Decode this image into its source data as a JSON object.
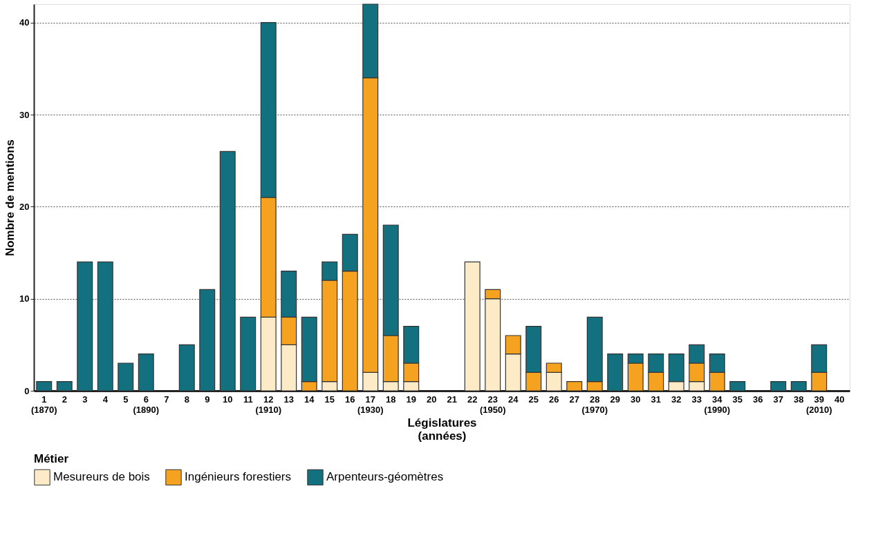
{
  "chart_data": {
    "type": "bar",
    "stacked": true,
    "xlabel": "Législatures\n(années)",
    "ylabel": "Nombre de mentions",
    "legend_title": "Métier",
    "legend": "bottom",
    "grid": "y",
    "ylim": [
      0,
      42
    ],
    "yticks": [
      0,
      10,
      20,
      30,
      40
    ],
    "categories": [
      "1\n(1870)",
      "2",
      "3",
      "4",
      "5",
      "6\n(1890)",
      "7",
      "8",
      "9",
      "10",
      "11",
      "12\n(1910)",
      "13",
      "14",
      "15",
      "16",
      "17\n(1930)",
      "18",
      "19",
      "20",
      "21",
      "22",
      "23\n(1950)",
      "24",
      "25",
      "26",
      "27",
      "28\n(1970)",
      "29",
      "30",
      "31",
      "32",
      "33",
      "34\n(1990)",
      "35",
      "36",
      "37",
      "38",
      "39\n(2010)",
      "40"
    ],
    "series": [
      {
        "name": "Mesureurs de bois",
        "color": "#fdebc8",
        "values": [
          null,
          null,
          null,
          null,
          null,
          null,
          null,
          null,
          null,
          null,
          null,
          8,
          5,
          null,
          1,
          null,
          2,
          1,
          1,
          null,
          null,
          14,
          10,
          4,
          null,
          2,
          null,
          null,
          null,
          null,
          null,
          1,
          1,
          null,
          null,
          null,
          null,
          null,
          null,
          null
        ]
      },
      {
        "name": "Ingénieurs forestiers",
        "color": "#f4a21f",
        "values": [
          null,
          null,
          null,
          null,
          null,
          null,
          null,
          null,
          null,
          null,
          null,
          13,
          3,
          1,
          11,
          13,
          32,
          5,
          2,
          null,
          null,
          null,
          1,
          2,
          2,
          1,
          1,
          1,
          null,
          3,
          2,
          null,
          2,
          2,
          null,
          null,
          null,
          null,
          2,
          null
        ]
      },
      {
        "name": "Arpenteurs-géomètres",
        "color": "#13707e",
        "values": [
          1,
          1,
          14,
          14,
          3,
          4,
          null,
          5,
          11,
          26,
          8,
          19,
          5,
          7,
          2,
          4,
          8,
          12,
          4,
          null,
          null,
          null,
          null,
          null,
          5,
          null,
          null,
          7,
          4,
          1,
          2,
          3,
          2,
          2,
          1,
          null,
          1,
          1,
          3,
          null
        ]
      }
    ]
  }
}
